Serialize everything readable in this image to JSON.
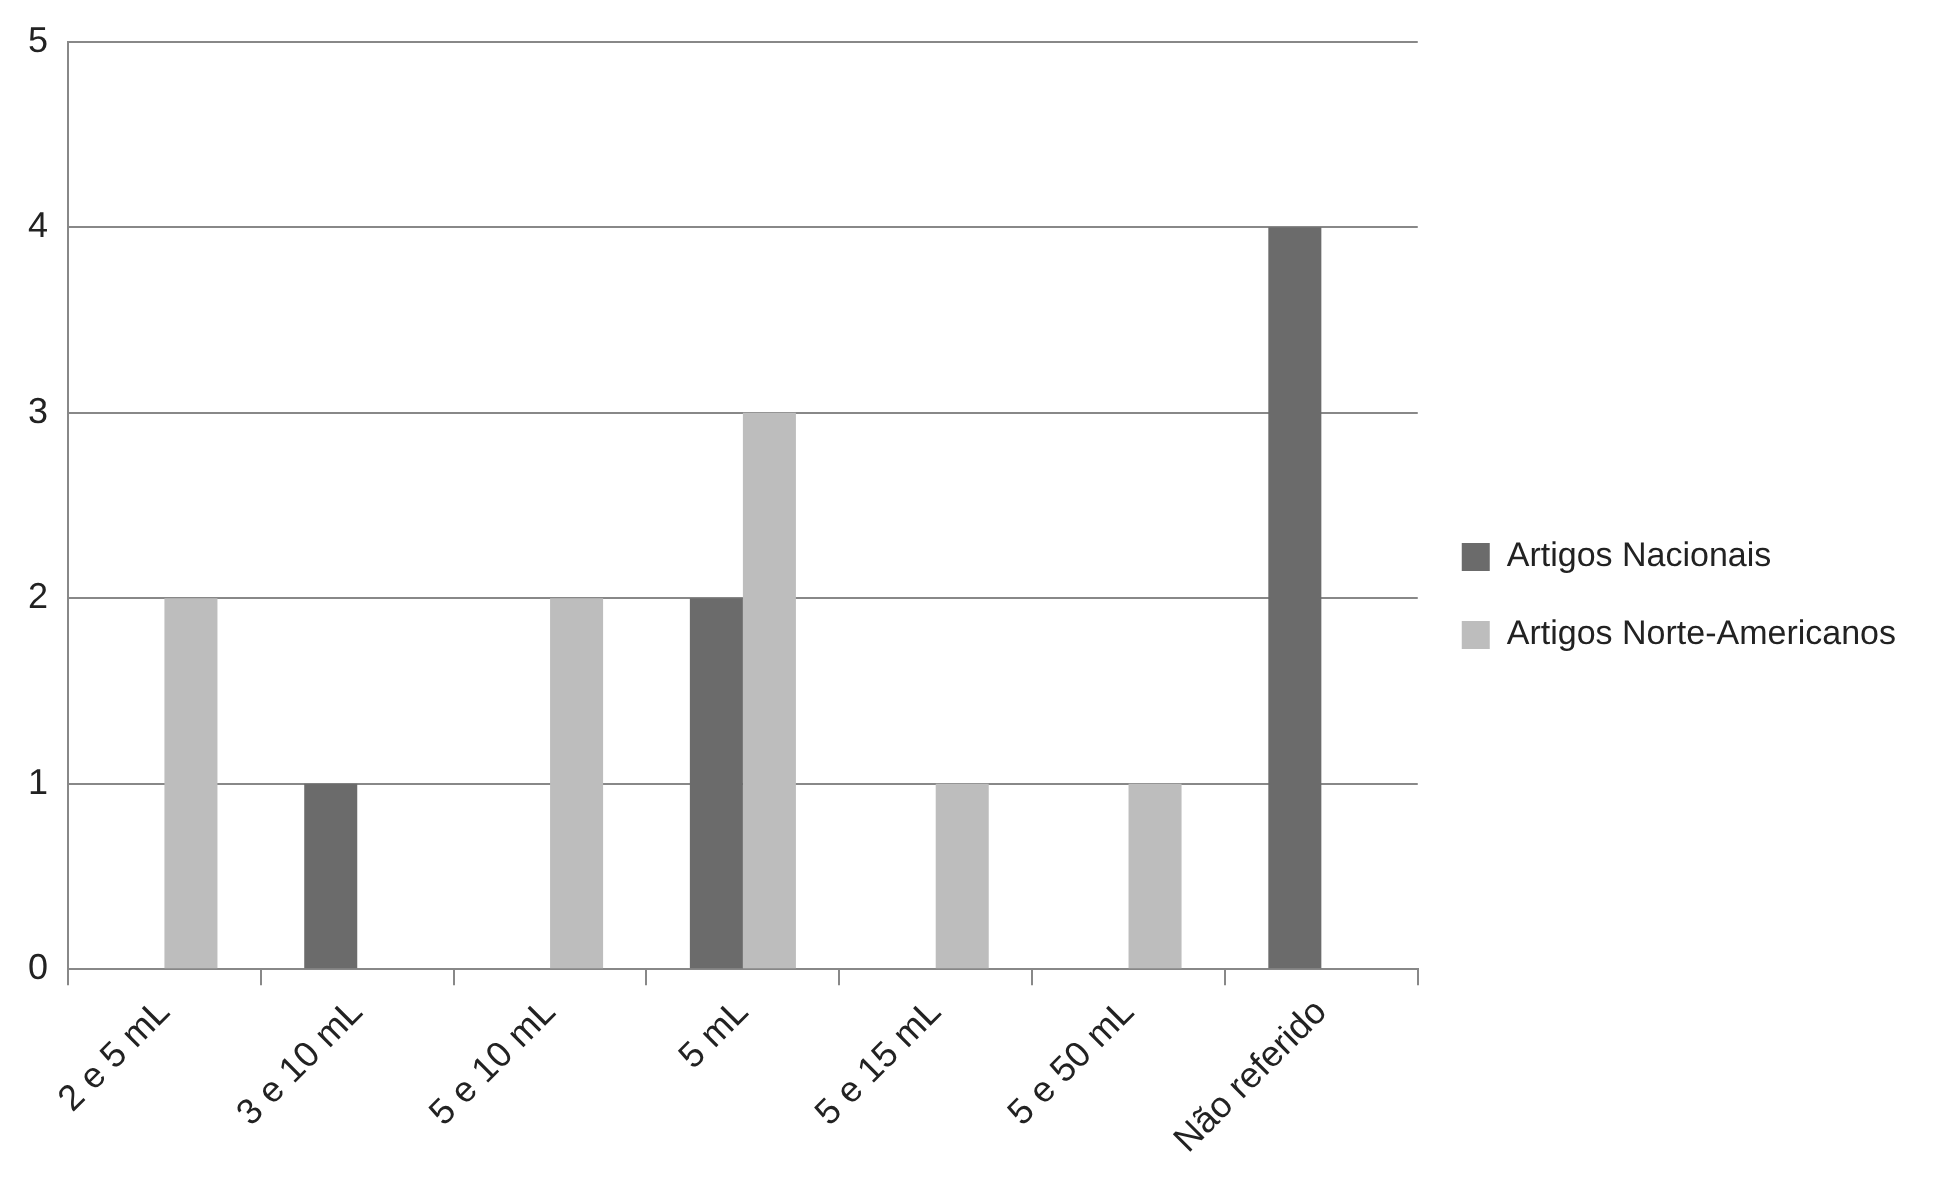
{
  "chart_data": {
    "type": "bar",
    "categories": [
      "2 e 5 mL",
      "3 e 10 mL",
      "5 e 10 mL",
      "5 mL",
      "5 e 15 mL",
      "5 e 50 mL",
      "Não referido"
    ],
    "series": [
      {
        "name": "Artigos Nacionais",
        "color": "#6b6b6b",
        "values": [
          0,
          1,
          0,
          2,
          0,
          0,
          4
        ]
      },
      {
        "name": "Artigos Norte-Americanos",
        "color": "#bdbdbd",
        "values": [
          2,
          0,
          2,
          3,
          1,
          1,
          0
        ]
      }
    ],
    "ylim": [
      0,
      5
    ],
    "yticks": [
      0,
      1,
      2,
      3,
      4,
      5
    ],
    "grid": "y",
    "legend": "right"
  }
}
